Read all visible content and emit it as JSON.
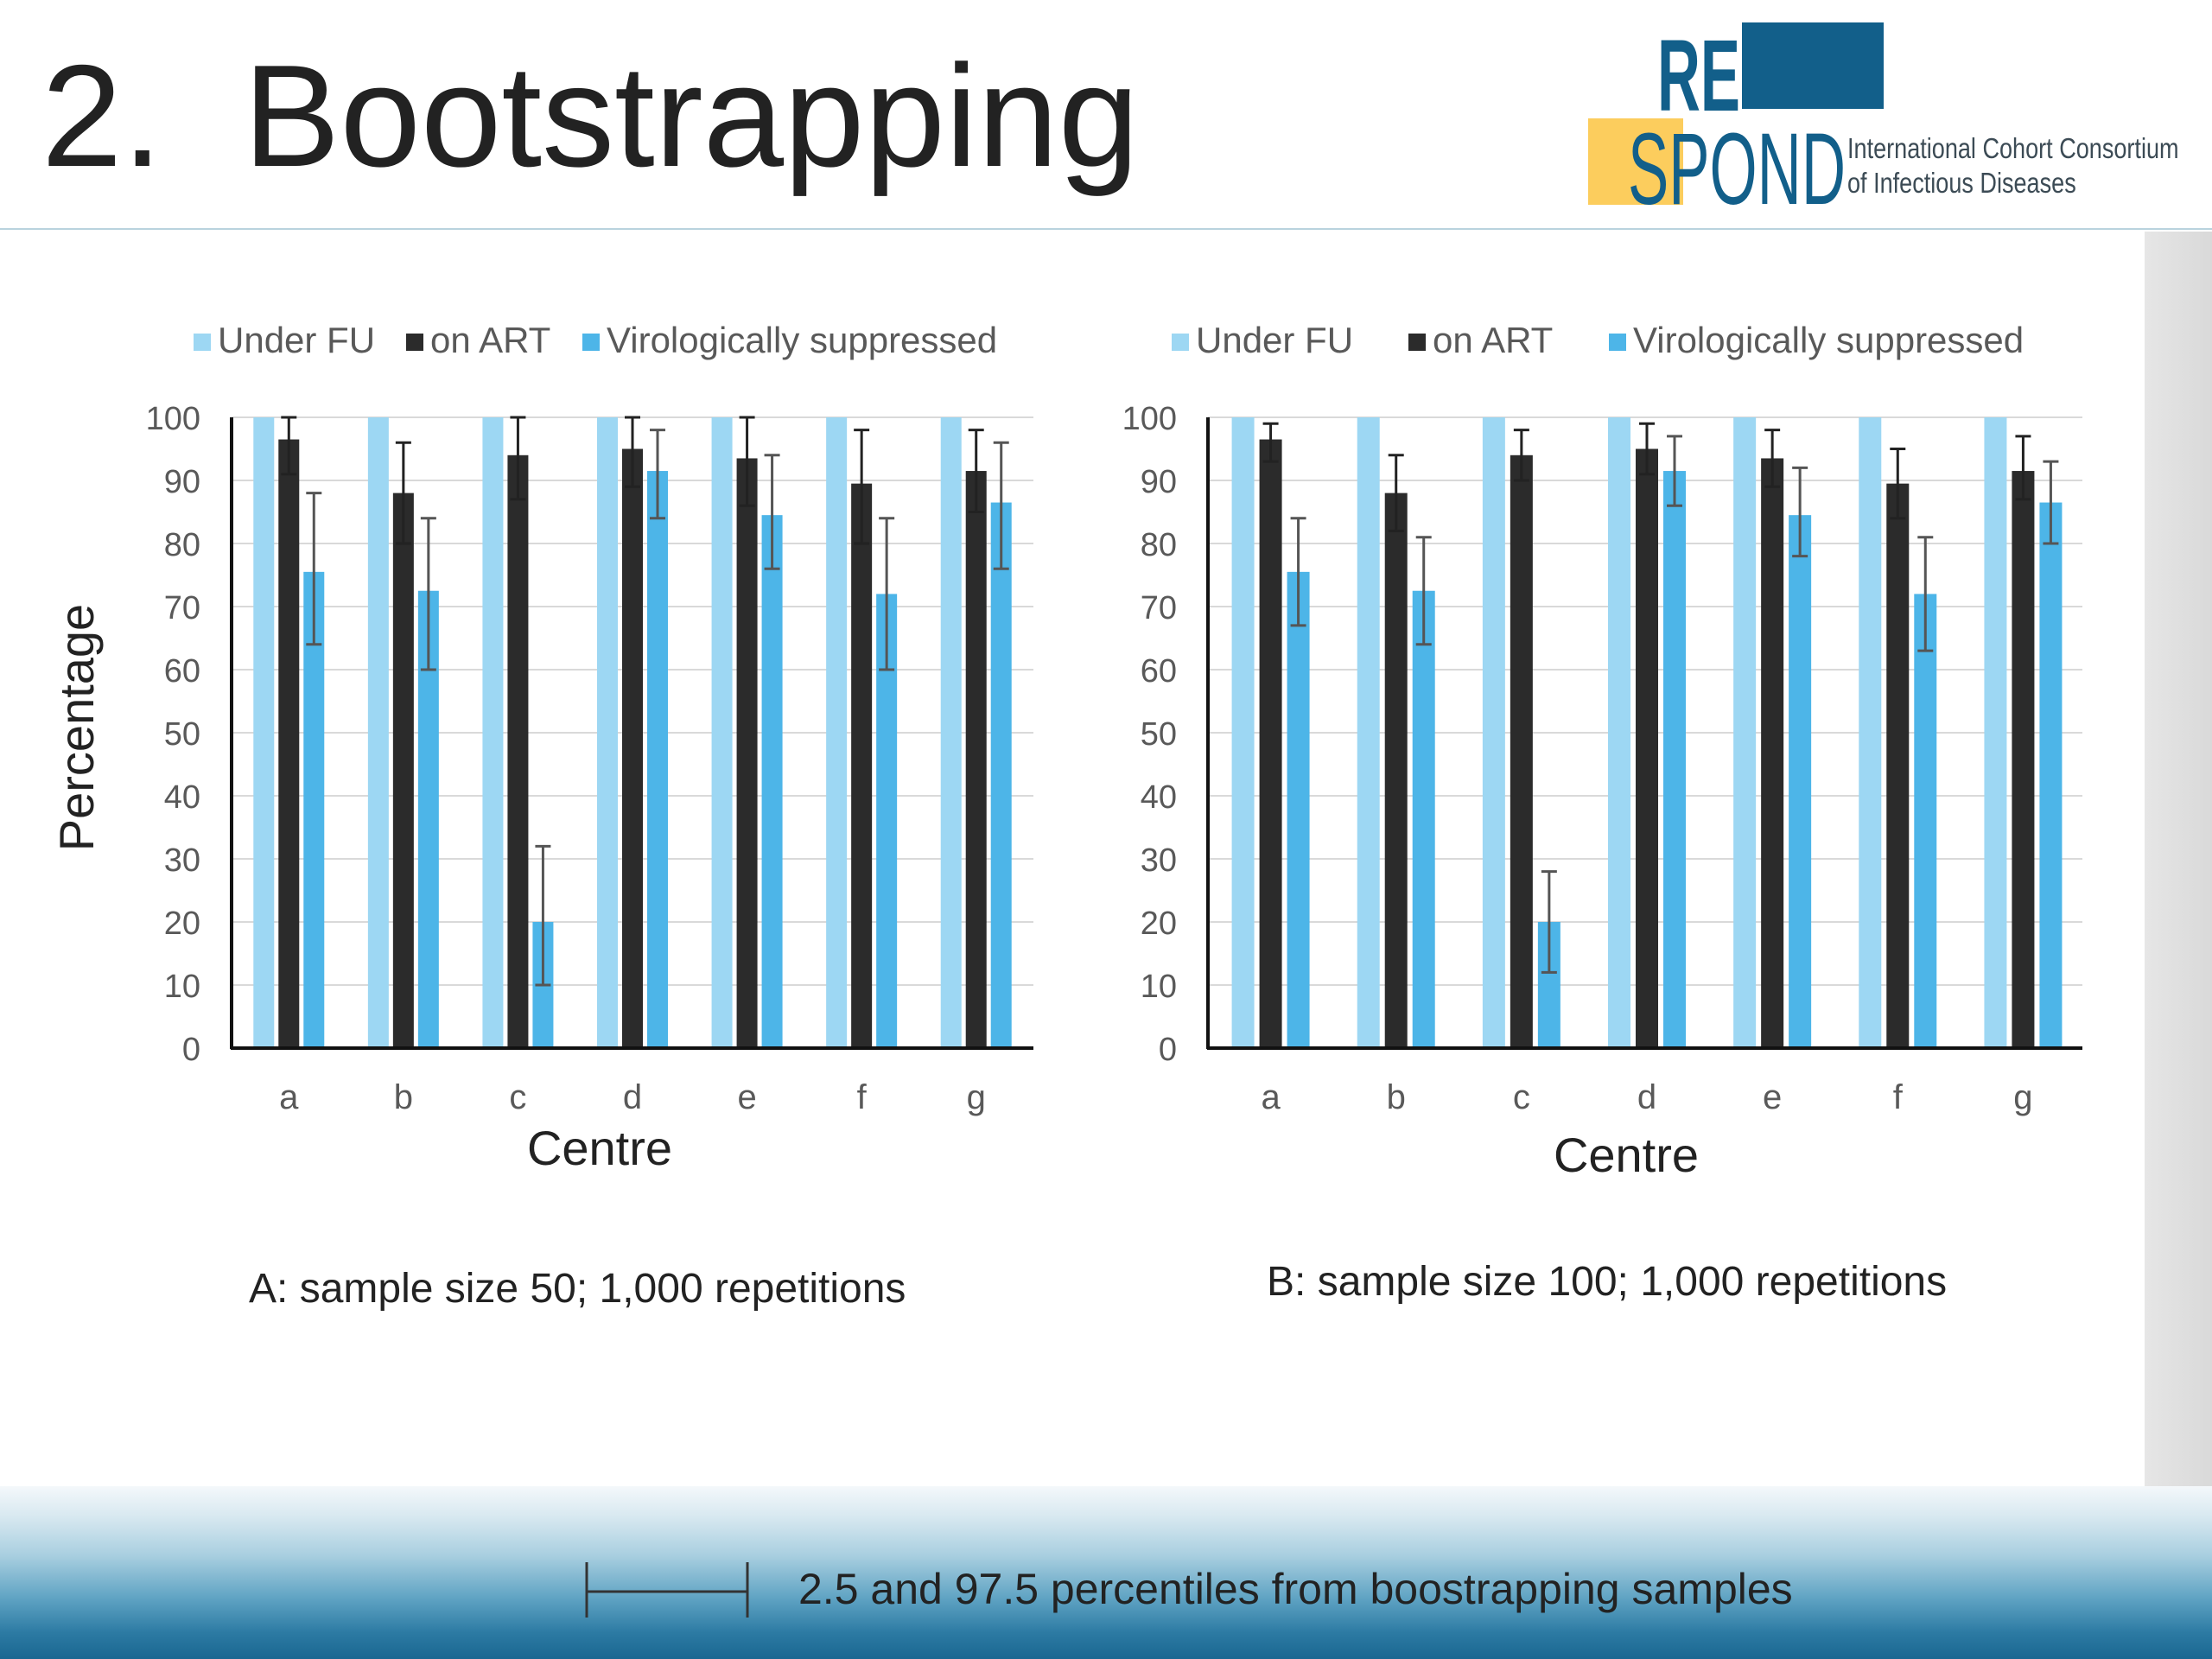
{
  "slide": {
    "title": "2.  Bootstrapping",
    "logo": {
      "re": "RE",
      "spond": "SPOND",
      "tagline_line1": "International Cohort Consortium",
      "tagline_line2": "of Infectious Diseases"
    },
    "footer_note": "2.5 and 97.5 percentiles from boostrapping samples"
  },
  "colors": {
    "under_fu": "#9dd7f3",
    "on_art": "#2b2b2b",
    "vs": "#4db5e8",
    "logo_dark": "#125f8a",
    "logo_yellow": "#fccd5d",
    "footer_dark": "#1a6791"
  },
  "chart_data": [
    {
      "type": "bar",
      "caption": "A: sample size 50; 1,000 repetitions",
      "xlabel": "Centre",
      "ylabel": "Percentage",
      "ylim": [
        0,
        100
      ],
      "yticks": [
        0,
        10,
        20,
        30,
        40,
        50,
        60,
        70,
        80,
        90,
        100
      ],
      "grid": true,
      "legend_position": "top",
      "categories": [
        "a",
        "b",
        "c",
        "d",
        "e",
        "f",
        "g"
      ],
      "series": [
        {
          "name": "Under FU",
          "values": [
            100,
            100,
            100,
            100,
            100,
            100,
            100
          ]
        },
        {
          "name": "on ART",
          "values": [
            96.5,
            88,
            94,
            95,
            93.5,
            89.5,
            91.5
          ],
          "lower": [
            91,
            80,
            87,
            89,
            86,
            80,
            85
          ],
          "upper": [
            100,
            96,
            100,
            100,
            100,
            98,
            98
          ]
        },
        {
          "name": "Virologically suppressed",
          "values": [
            75.5,
            72.5,
            20,
            91.5,
            84.5,
            72,
            86.5
          ],
          "lower": [
            64,
            60,
            10,
            84,
            76,
            60,
            76
          ],
          "upper": [
            88,
            84,
            32,
            98,
            94,
            84,
            96
          ]
        }
      ]
    },
    {
      "type": "bar",
      "caption": "B: sample size 100; 1,000 repetitions",
      "xlabel": "Centre",
      "ylabel": "",
      "ylim": [
        0,
        100
      ],
      "yticks": [
        0,
        10,
        20,
        30,
        40,
        50,
        60,
        70,
        80,
        90,
        100
      ],
      "grid": true,
      "legend_position": "top",
      "categories": [
        "a",
        "b",
        "c",
        "d",
        "e",
        "f",
        "g"
      ],
      "series": [
        {
          "name": "Under FU",
          "values": [
            100,
            100,
            100,
            100,
            100,
            100,
            100
          ]
        },
        {
          "name": "on ART",
          "values": [
            96.5,
            88,
            94,
            95,
            93.5,
            89.5,
            91.5
          ],
          "lower": [
            93,
            82,
            90,
            91,
            89,
            84,
            87
          ],
          "upper": [
            99,
            94,
            98,
            99,
            98,
            95,
            97
          ]
        },
        {
          "name": "Virologically suppressed",
          "values": [
            75.5,
            72.5,
            20,
            91.5,
            84.5,
            72,
            86.5
          ],
          "lower": [
            67,
            64,
            12,
            86,
            78,
            63,
            80
          ],
          "upper": [
            84,
            81,
            28,
            97,
            92,
            81,
            93
          ]
        }
      ]
    }
  ]
}
